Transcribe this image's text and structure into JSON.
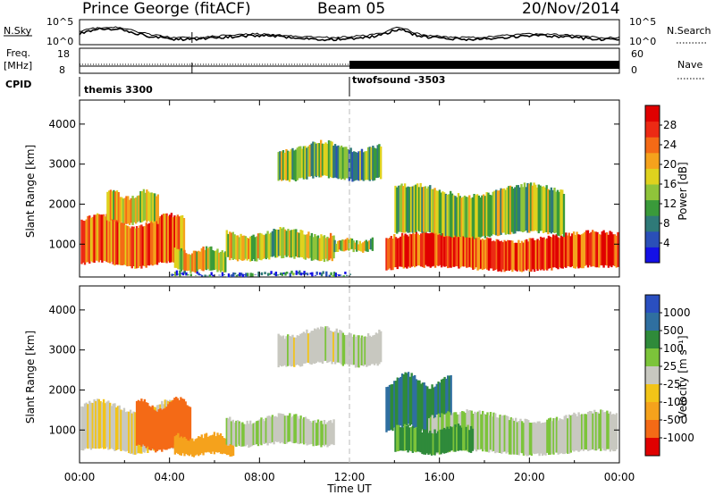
{
  "header": {
    "station": "Prince George (fitACF)",
    "beam": "Beam 05",
    "date": "20/Nov/2014"
  },
  "top_panels": {
    "nsky_label": "N.Sky",
    "nsky_ticks": [
      "10^5",
      "10^0"
    ],
    "nsearch_label": "N.Search",
    "nsearch_ticks": [
      "10^5",
      "10^0"
    ],
    "freq_label_line1": "Freq.",
    "freq_label_line2": "[MHz]",
    "freq_ticks": [
      "18",
      "8"
    ],
    "nave_label": "Nave",
    "nave_ticks": [
      "60",
      "0"
    ],
    "cpid_label": "CPID",
    "cpid_segments": [
      {
        "name": "themis 3300",
        "start_hour": 0,
        "end_hour": 12
      },
      {
        "name": "twofsound -3503",
        "start_hour": 12,
        "end_hour": 24
      }
    ]
  },
  "chart_data": [
    {
      "type": "heatmap",
      "title": "",
      "quantity": "Power",
      "xlabel": "Time UT",
      "ylabel": "Slant Range [km]",
      "x_ticks": [
        "00:00",
        "04:00",
        "08:00",
        "12:00",
        "16:00",
        "20:00",
        "00:00"
      ],
      "y_ticks": [
        "1000",
        "2000",
        "3000",
        "4000"
      ],
      "xlim_hours": [
        0,
        24
      ],
      "ylim_km": [
        180,
        4600
      ],
      "colorbar_label": "Power [dB]",
      "colorbar_ticks": [
        "4",
        "8",
        "12",
        "16",
        "20",
        "24",
        "28"
      ],
      "colorbar_colors": [
        "#1410e6",
        "#2a4fb8",
        "#2f7a78",
        "#3a9a3a",
        "#8fc43a",
        "#dfd21e",
        "#f5a21c",
        "#f46a16",
        "#ec2a14",
        "#e00000"
      ],
      "regions_hours_km": [
        {
          "t0": 0.05,
          "t1": 4.6,
          "r0": 450,
          "r1": 1650,
          "level": 0.75
        },
        {
          "t0": 1.2,
          "t1": 3.5,
          "r0": 1500,
          "r1": 2300,
          "level": 0.55
        },
        {
          "t0": 4.2,
          "t1": 6.5,
          "r0": 300,
          "r1": 900,
          "level": 0.55
        },
        {
          "t0": 6.5,
          "t1": 11.3,
          "r0": 600,
          "r1": 1350,
          "level": 0.5
        },
        {
          "t0": 8.8,
          "t1": 13.4,
          "r0": 2600,
          "r1": 3500,
          "level": 0.4
        },
        {
          "t0": 11.3,
          "t1": 13.0,
          "r0": 800,
          "r1": 1150,
          "level": 0.5
        },
        {
          "t0": 13.6,
          "t1": 23.9,
          "r0": 350,
          "r1": 1250,
          "level": 0.85
        },
        {
          "t0": 14.0,
          "t1": 21.5,
          "r0": 1200,
          "r1": 2400,
          "level": 0.45
        },
        {
          "t0": 4.0,
          "t1": 12.0,
          "r0": 180,
          "r1": 330,
          "level": 0.2
        }
      ]
    },
    {
      "type": "heatmap",
      "title": "",
      "quantity": "Velocity",
      "xlabel": "Time UT",
      "ylabel": "Slant Range [km]",
      "x_ticks": [
        "00:00",
        "04:00",
        "08:00",
        "12:00",
        "16:00",
        "20:00",
        "00:00"
      ],
      "y_ticks": [
        "1000",
        "2000",
        "3000",
        "4000"
      ],
      "xlim_hours": [
        0,
        24
      ],
      "ylim_km": [
        180,
        4600
      ],
      "colorbar_label": "Velocity [m s⁻¹]",
      "colorbar_ticks": [
        "1000",
        "500",
        "100",
        "25",
        "-25",
        "-100",
        "-500",
        "-1000"
      ],
      "colorbar_colors": [
        "#2a4fc0",
        "#2f6fa0",
        "#2f8a3a",
        "#7cc43a",
        "#c8c8c0",
        "#f2c418",
        "#f5a21c",
        "#f46a16",
        "#e00000"
      ],
      "regions_hours_km": [
        {
          "t0": 0.05,
          "t1": 4.6,
          "r0": 450,
          "r1": 1650,
          "value": -20
        },
        {
          "t0": 2.5,
          "t1": 4.9,
          "r0": 500,
          "r1": 1700,
          "value": -400
        },
        {
          "t0": 4.2,
          "t1": 6.8,
          "r0": 350,
          "r1": 900,
          "value": -150
        },
        {
          "t0": 6.5,
          "t1": 11.3,
          "r0": 600,
          "r1": 1350,
          "value": 10
        },
        {
          "t0": 8.8,
          "t1": 13.4,
          "r0": 2600,
          "r1": 3500,
          "value": 0
        },
        {
          "t0": 13.6,
          "t1": 16.5,
          "r0": 1000,
          "r1": 2300,
          "value": 300
        },
        {
          "t0": 15.5,
          "t1": 23.9,
          "r0": 400,
          "r1": 1400,
          "value": 20
        },
        {
          "t0": 14.0,
          "t1": 17.5,
          "r0": 400,
          "r1": 1100,
          "value": 80
        }
      ]
    }
  ]
}
